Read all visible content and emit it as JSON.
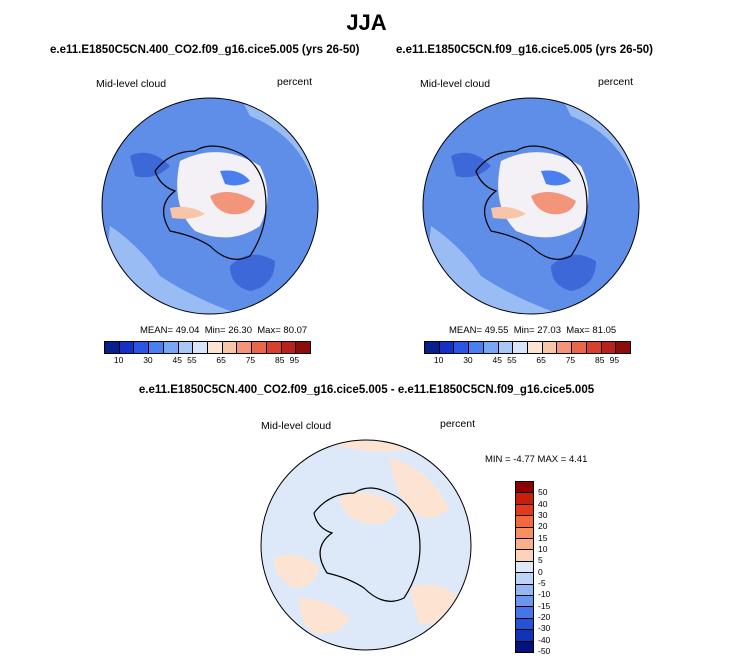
{
  "season": "JJA",
  "panel1": {
    "case": "e.e11.E1850C5CN.400_CO2.f09_g16.cice5.005 (yrs 26-50)",
    "variable": "Mid-level cloud",
    "units": "percent",
    "mean_label": "MEAN=",
    "mean": "49.04",
    "min_label": "Min=",
    "min": "26.30",
    "max_label": "Max=",
    "max": "80.07"
  },
  "panel2": {
    "case": "e.e11.E1850C5CN.f09_g16.cice5.005 (yrs 26-50)",
    "variable": "Mid-level cloud",
    "units": "percent",
    "mean_label": "MEAN=",
    "mean": "49.55",
    "min_label": "Min=",
    "min": "27.03",
    "max_label": "Max=",
    "max": "81.05"
  },
  "diff": {
    "title": "e.e11.E1850C5CN.400_CO2.f09_g16.cice5.005 - e.e11.E1850C5CN.f09_g16.cice5.005",
    "variable": "Mid-level cloud",
    "units": "percent",
    "min_label": "MIN =",
    "min": "-4.77",
    "max_label": "MAX =",
    "max": "4.41"
  },
  "abs_colorbar": {
    "colors": [
      "#0a1e8c",
      "#1430c8",
      "#2a55e6",
      "#4a7ff0",
      "#78a7f5",
      "#a9c8f7",
      "#d6e5f9",
      "#fde4d2",
      "#f9c4a8",
      "#f2957a",
      "#e8674d",
      "#d6402d",
      "#b8221a",
      "#8b0e0b"
    ],
    "ticks": [
      "10",
      "30",
      "45",
      "55",
      "65",
      "75",
      "85",
      "95"
    ]
  },
  "diff_colorbar": {
    "colors": [
      "#8b0000",
      "#c81e0a",
      "#e23a1a",
      "#f26a3c",
      "#f78f62",
      "#fab08c",
      "#fcd2b8",
      "#dde9f8",
      "#bcd4f7",
      "#93b7f3",
      "#6b97ee",
      "#4575e6",
      "#2553d8",
      "#1232b8",
      "#04127a"
    ],
    "ticks": [
      "50",
      "40",
      "30",
      "20",
      "15",
      "10",
      "5",
      "0",
      "-5",
      "-10",
      "-15",
      "-20",
      "-30",
      "-40",
      "-50"
    ]
  },
  "colors": {
    "abs_base": "#5f8ee8",
    "abs_light": "#a9c8f7",
    "abs_dark": "#3d68d8",
    "diff_base": "#dde9f8",
    "diff_pos": "#fde4d2"
  }
}
